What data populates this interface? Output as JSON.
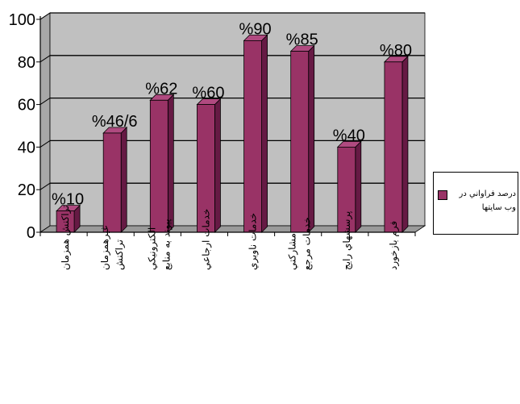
{
  "chart_data": {
    "type": "bar",
    "categories": [
      "تراكنش همزمان",
      "تراكنش غيرهمزمان",
      "پيوند به منابع الكترونيكي",
      "خدمات ارجاعي",
      "خدمات ناوبري",
      "خدمات مرجع مشاركتي",
      "پرسشهاي رايج",
      "فرم بازخورد"
    ],
    "category_lines": [
      [
        "تراكنش همزمان"
      ],
      [
        "غيرهمزمان",
        "تراكنش"
      ],
      [
        "الكترونيكي",
        "پيوند به منابع"
      ],
      [
        "خدمات ارجاعي"
      ],
      [
        "خدمات ناوبري"
      ],
      [
        "مشاركتي",
        "خدمات مرجع"
      ],
      [
        "پرسشهاي رايج"
      ],
      [
        "فرم بازخورد"
      ]
    ],
    "values": [
      10,
      46.6,
      62,
      60,
      90,
      85,
      40,
      80
    ],
    "data_labels": [
      "%10",
      "%46/6",
      "%62",
      "%60",
      "%90",
      "%85",
      "%40",
      "%80"
    ],
    "series": [
      {
        "name": "درصد فراواني در وب سايتها",
        "values": [
          10,
          46.6,
          62,
          60,
          90,
          85,
          40,
          80
        ]
      }
    ],
    "yticks": [
      "0",
      "20",
      "40",
      "60",
      "80",
      "100"
    ],
    "ylim": [
      0,
      100
    ],
    "grid": true,
    "legend_position": "right",
    "colors": {
      "bar_front": "#993366",
      "bar_side": "#661a44",
      "bar_top": "#b04a80",
      "wall": "#c0c0c0",
      "floor": "#9a9a9a"
    }
  }
}
